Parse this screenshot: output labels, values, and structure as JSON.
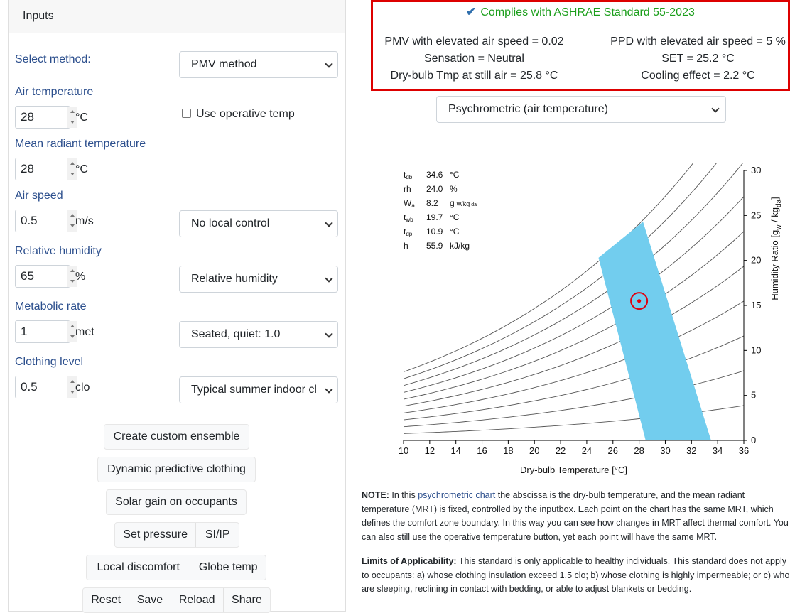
{
  "inputs_panel": {
    "title": "Inputs",
    "select_method_label": "Select method:",
    "method_value": "PMV method",
    "air_temp": {
      "label": "Air temperature",
      "value": "28",
      "unit": "°C",
      "checkbox_label": "Use operative temp",
      "checked": false
    },
    "mrt": {
      "label": "Mean radiant temperature",
      "value": "28",
      "unit": "°C"
    },
    "air_speed": {
      "label": "Air speed",
      "value": "0.5",
      "unit": "m/s",
      "select": "No local control"
    },
    "rh": {
      "label": "Relative humidity",
      "value": "65",
      "unit": "%",
      "select": "Relative humidity"
    },
    "met": {
      "label": "Metabolic rate",
      "value": "1",
      "unit": "met",
      "select": "Seated, quiet: 1.0"
    },
    "clo": {
      "label": "Clothing level",
      "value": "0.5",
      "unit": "clo",
      "select": "Typical summer indoor cl"
    },
    "buttons": {
      "custom_ensemble": "Create custom ensemble",
      "dynamic_clothing": "Dynamic predictive clothing",
      "solar_gain": "Solar gain on occupants",
      "set_pressure": "Set pressure",
      "si_ip": "SI/IP",
      "local_discomfort": "Local discomfort",
      "globe_temp": "Globe temp",
      "reset": "Reset",
      "save": "Save",
      "reload": "Reload",
      "share": "Share"
    }
  },
  "results": {
    "compliance": "Complies with ASHRAE Standard 55-2023",
    "pmv": "PMV with elevated air speed = 0.02",
    "sensation": "Sensation = Neutral",
    "still_air": "Dry-bulb Tmp at still air = 25.8 °C",
    "ppd": "PPD with elevated air speed = 5 %",
    "set": "SET = 25.2 °C",
    "cooling": "Cooling effect = 2.2 °C"
  },
  "chart_selector": "Psychrometric (air temperature)",
  "readout": [
    {
      "sym": "t",
      "sub": "db",
      "val": "34.6",
      "unit": "°C"
    },
    {
      "sym": "rh",
      "sub": "",
      "val": "24.0",
      "unit": "%"
    },
    {
      "sym": "W",
      "sub": "a",
      "val": "8.2",
      "unit": "g",
      "unit_sub": "w/kg",
      "unit_sub2": "da"
    },
    {
      "sym": "t",
      "sub": "wb",
      "val": "19.7",
      "unit": "°C"
    },
    {
      "sym": "t",
      "sub": "dp",
      "val": "10.9",
      "unit": "°C"
    },
    {
      "sym": "h",
      "sub": "",
      "val": "55.9",
      "unit": "kJ/kg"
    }
  ],
  "chart_data": {
    "type": "psychrometric",
    "xlabel": "Dry-bulb Temperature [°C]",
    "ylabel": "Humidity Ratio [gw / kgda]",
    "xlim": [
      10,
      36
    ],
    "ylim": [
      0,
      30
    ],
    "x_ticks": [
      10,
      12,
      14,
      16,
      18,
      20,
      22,
      24,
      26,
      28,
      30,
      32,
      34,
      36
    ],
    "y_ticks": [
      0,
      5,
      10,
      15,
      20,
      25,
      30
    ],
    "rh_curves": [
      10,
      20,
      30,
      40,
      50,
      60,
      70,
      80,
      90,
      100
    ],
    "comfort_zone": [
      [
        24.9,
        20.3
      ],
      [
        28.3,
        24.3
      ],
      [
        33.5,
        0
      ],
      [
        28.5,
        0
      ]
    ],
    "comfort_zone_color": "#72cdee",
    "current_point": {
      "x": 28,
      "y": 15.5,
      "color": "#e0000d"
    }
  },
  "note": {
    "lead": "NOTE:",
    "l1a": " In this ",
    "link": "psychrometric chart",
    "l1b": " the abscissa is the dry-bulb temperature, and the mean radiant",
    "l2": "temperature (MRT) is fixed, controlled by the inputbox. Each point on the chart has the same MRT, which",
    "l3": "defines the comfort zone boundary. In this way you can see how changes in MRT affect thermal comfort. You",
    "l4": "can also still use the operative temperature button, yet each point will have the same MRT."
  },
  "limits": {
    "lead": "Limits of Applicability:",
    "l1": " This standard is only applicable to healthy individuals. This standard does not apply",
    "l2": "to occupants: a) whose clothing insulation exceed 1.5 clo; b) whose clothing is highly impermeable; or c) who",
    "l3": "are sleeping, reclining in contact with bedding, or able to adjust blankets or bedding."
  }
}
